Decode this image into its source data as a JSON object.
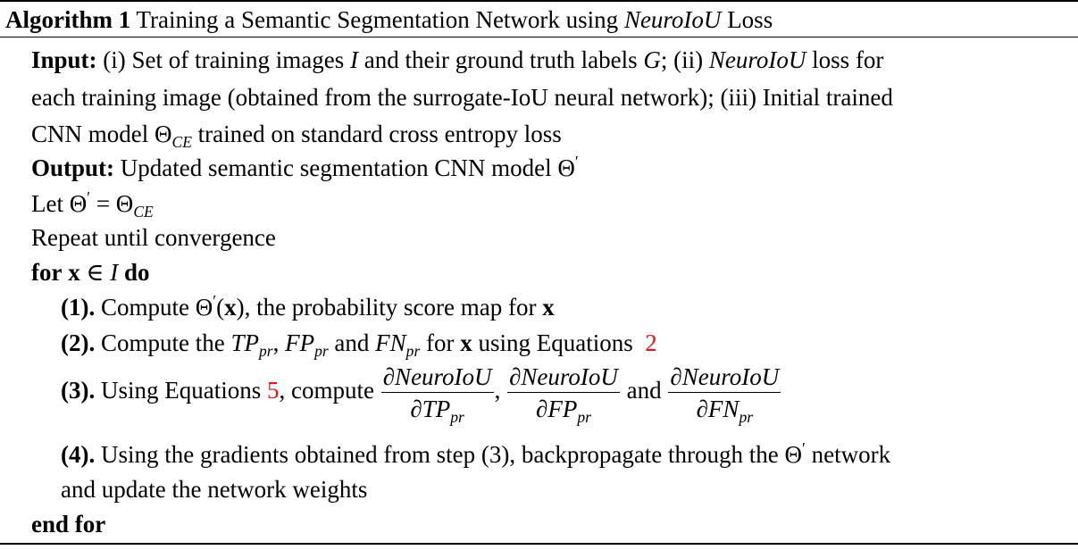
{
  "title": {
    "bold": "Algorithm 1",
    "text_before": "Training a Semantic Segmentation Network using",
    "italic": "NeuroIoU",
    "text_after": "Loss"
  },
  "input": {
    "label": "Input:",
    "line1_a": "(i) Set of training images",
    "var_I": "I",
    "line1_b": "and their ground truth labels",
    "var_G": "G",
    "line1_c": "; (ii)",
    "neuro": "NeuroIoU",
    "line1_d": "loss for",
    "line2": "each training image (obtained from the surrogate-IoU neural network); (iii) Initial trained",
    "line3_a": "CNN model Θ",
    "line3_sub": "CE",
    "line3_b": "trained on standard cross entropy loss"
  },
  "output": {
    "label": "Output:",
    "text": "Updated semantic segmentation CNN model Θ",
    "prime": "′"
  },
  "let": {
    "a": "Let Θ",
    "prime": "′",
    "b": "= Θ",
    "sub": "CE"
  },
  "repeat": "Repeat until convergence",
  "for": {
    "kw_for": "for",
    "x": "x",
    "in": "∈",
    "I": "I",
    "kw_do": "do"
  },
  "steps": {
    "s1": {
      "label": "(1).",
      "a": "Compute Θ",
      "prime": "′",
      "b": "(",
      "x": "x",
      "c": "), the probability score map for",
      "x2": "x"
    },
    "s2": {
      "label": "(2).",
      "a": "Compute the",
      "tp": "TP",
      "fp": "FP",
      "fn": "FN",
      "sub": "pr",
      "comma": ",",
      "and": "and",
      "b": "for",
      "x": "x",
      "c": "using Equations",
      "ref": "2"
    },
    "s3": {
      "label": "(3).",
      "a": "Using Equations",
      "ref": "5",
      "b": ", compute",
      "num": "∂NeuroIoU",
      "den1": "∂TP",
      "den2": "∂FP",
      "den3": "∂FN",
      "sub": "pr",
      "comma": ",",
      "and": "and"
    },
    "s4": {
      "label": "(4).",
      "line1_a": "Using the gradients obtained from step (3), backpropagate through the Θ",
      "prime": "′",
      "line1_b": "network",
      "line2": "and update the network weights"
    }
  },
  "end": "end for"
}
